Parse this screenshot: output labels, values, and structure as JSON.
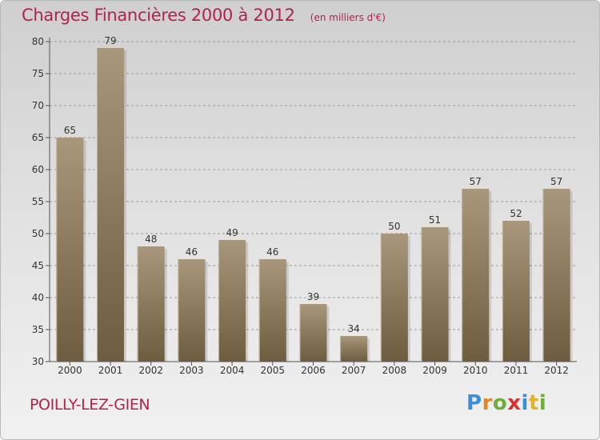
{
  "page": {
    "title": "Charges Financières 2000 à 2012",
    "subtitle": "(en milliers d'€)",
    "commune": "POILLY-LEZ-GIEN",
    "brand": "Proxiti"
  },
  "colors": {
    "text_accent": "#b3224b",
    "bar_top": "#a8977a",
    "bar_bottom": "#6e5c3f",
    "bar_highlight": "#bfb097",
    "grid": "#9a9a9a",
    "axis_text": "#333333"
  },
  "chart_data": {
    "type": "bar",
    "title": "Charges Financières 2000 à 2012",
    "subtitle": "(en milliers d'€)",
    "categories": [
      "2000",
      "2001",
      "2002",
      "2003",
      "2004",
      "2005",
      "2006",
      "2007",
      "2008",
      "2009",
      "2010",
      "2011",
      "2012"
    ],
    "values": [
      65,
      79,
      48,
      46,
      49,
      46,
      39,
      34,
      50,
      51,
      57,
      52,
      57
    ],
    "ylim": [
      30,
      80
    ],
    "yticks": [
      30,
      35,
      40,
      45,
      50,
      55,
      60,
      65,
      70,
      75,
      80
    ],
    "grid": "horizontal dashed",
    "legend": "none"
  }
}
